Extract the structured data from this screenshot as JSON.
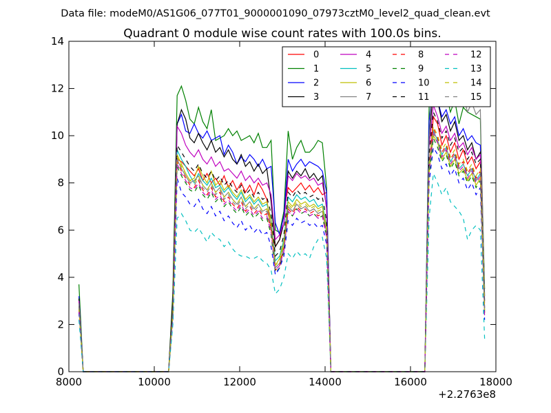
{
  "chart_data": {
    "type": "line",
    "suptitle": "Data file: modeM0/AS1G06_077T01_9000001090_07973cztM0_level2_quad_clean.evt",
    "title": "Quadrant 0 module wise count rates with 100.0s bins.",
    "xlabel": "",
    "ylabel": "",
    "x_offset_label": "+2.2763e8",
    "xlim": [
      8000,
      18000
    ],
    "ylim": [
      0,
      14
    ],
    "xticks": [
      8000,
      10000,
      12000,
      14000,
      16000,
      18000
    ],
    "xtick_labels": [
      "8000",
      "10000",
      "12000",
      "14000",
      "16000",
      "18000"
    ],
    "yticks": [
      0,
      2,
      4,
      6,
      8,
      10,
      12,
      14
    ],
    "ytick_labels": [
      "0",
      "2",
      "4",
      "6",
      "8",
      "10",
      "12",
      "14"
    ],
    "grid": false,
    "legend_position": "top-right",
    "legend_columns": 4,
    "x": [
      8236,
      8336,
      10336,
      10436,
      10536,
      10636,
      10736,
      10836,
      10936,
      11036,
      11136,
      11236,
      11336,
      11436,
      11536,
      11636,
      11736,
      11836,
      11936,
      12036,
      12136,
      12236,
      12336,
      12436,
      12536,
      12636,
      12736,
      12836,
      12936,
      13036,
      13136,
      13236,
      13336,
      13436,
      13536,
      13636,
      13736,
      13836,
      13936,
      14036,
      14136,
      16336,
      16436,
      16536,
      16636,
      16736,
      16836,
      16936,
      17036,
      17136,
      17236,
      17336,
      17436,
      17536,
      17636,
      17736
    ],
    "series": [
      {
        "name": "0",
        "color": "#ff0000",
        "dash": "solid",
        "values": [
          3.0,
          0,
          0,
          3.0,
          9.0,
          8.9,
          8.7,
          8.5,
          8.3,
          8.6,
          8.1,
          8.4,
          8.0,
          8.2,
          7.9,
          8.3,
          7.8,
          8.1,
          7.7,
          8.0,
          7.6,
          7.9,
          7.5,
          8.0,
          7.7,
          7.3,
          6.0,
          5.3,
          5.6,
          6.8,
          7.8,
          7.6,
          7.8,
          8.0,
          7.7,
          7.9,
          7.6,
          7.8,
          7.5,
          7.6,
          0,
          0,
          8.5,
          10.8,
          10.5,
          9.6,
          10.0,
          9.3,
          9.7,
          9.0,
          9.4,
          8.8,
          9.1,
          8.6,
          8.9,
          2.5
        ]
      },
      {
        "name": "1",
        "color": "#008000",
        "dash": "solid",
        "values": [
          3.7,
          0,
          0,
          3.4,
          11.7,
          12.1,
          11.5,
          10.7,
          10.5,
          11.2,
          10.6,
          10.3,
          11.1,
          9.8,
          9.9,
          10.0,
          10.3,
          10.0,
          10.2,
          9.8,
          9.9,
          10.0,
          9.7,
          10.1,
          9.5,
          9.5,
          9.8,
          6.0,
          5.9,
          6.8,
          10.2,
          9.0,
          9.5,
          9.8,
          9.3,
          9.3,
          9.5,
          9.8,
          9.7,
          7.8,
          0,
          0,
          11.2,
          12.6,
          12.2,
          11.6,
          11.8,
          11.0,
          11.5,
          10.5,
          11.2,
          11.0,
          10.9,
          10.8,
          10.7,
          3.5
        ]
      },
      {
        "name": "2",
        "color": "#0000ff",
        "dash": "solid",
        "values": [
          3.2,
          0,
          0,
          2.8,
          10.5,
          10.9,
          10.2,
          10.1,
          10.5,
          10.1,
          9.9,
          10.2,
          9.8,
          9.9,
          10.0,
          9.2,
          9.6,
          9.3,
          8.8,
          9.1,
          8.9,
          9.2,
          9.0,
          8.7,
          9.0,
          8.6,
          8.7,
          6.3,
          5.8,
          6.6,
          9.0,
          8.5,
          8.8,
          9.0,
          8.7,
          8.9,
          8.8,
          8.7,
          8.5,
          7.6,
          0,
          0,
          10.6,
          12.4,
          11.5,
          10.8,
          11.1,
          10.5,
          10.8,
          10.0,
          10.3,
          9.8,
          10.0,
          9.7,
          9.6,
          3.2
        ]
      },
      {
        "name": "3",
        "color": "#000000",
        "dash": "solid",
        "values": [
          3.1,
          0,
          0,
          3.2,
          10.5,
          11.1,
          10.7,
          9.9,
          9.7,
          10.1,
          9.7,
          9.4,
          9.8,
          9.3,
          9.5,
          9.1,
          9.4,
          9.0,
          8.8,
          9.2,
          8.7,
          8.9,
          8.5,
          8.8,
          8.4,
          8.6,
          7.2,
          5.3,
          5.6,
          6.3,
          8.5,
          8.2,
          8.5,
          8.3,
          8.6,
          8.2,
          8.4,
          8.1,
          8.3,
          6.9,
          0,
          0,
          9.8,
          12.0,
          11.5,
          10.6,
          10.9,
          10.2,
          10.6,
          9.8,
          10.0,
          9.4,
          9.7,
          9.0,
          9.3,
          3.0
        ]
      },
      {
        "name": "4",
        "color": "#bf00bf",
        "dash": "solid",
        "values": [
          3.0,
          0,
          0,
          2.6,
          10.4,
          10.1,
          9.6,
          9.3,
          9.1,
          9.4,
          9.0,
          8.8,
          9.1,
          8.7,
          8.9,
          8.5,
          8.6,
          8.4,
          8.2,
          8.5,
          8.1,
          8.3,
          8.0,
          8.2,
          7.9,
          8.0,
          7.5,
          5.6,
          5.8,
          6.3,
          8.3,
          8.1,
          8.4,
          8.2,
          8.3,
          8.1,
          8.2,
          7.9,
          8.0,
          7.0,
          0,
          0,
          9.5,
          11.3,
          10.8,
          10.1,
          10.4,
          9.8,
          10.1,
          9.5,
          9.7,
          9.2,
          9.5,
          9.0,
          9.2,
          2.9
        ]
      },
      {
        "name": "5",
        "color": "#00bfbf",
        "dash": "solid",
        "values": [
          2.8,
          0,
          0,
          2.5,
          9.4,
          9.0,
          8.7,
          8.3,
          8.0,
          8.4,
          8.1,
          7.9,
          8.2,
          7.8,
          7.9,
          7.6,
          7.8,
          7.5,
          7.3,
          7.6,
          7.2,
          7.4,
          7.1,
          7.3,
          7.0,
          7.1,
          6.5,
          4.7,
          4.9,
          5.6,
          7.4,
          7.2,
          7.5,
          7.3,
          7.4,
          7.2,
          7.3,
          7.0,
          7.1,
          6.2,
          0,
          0,
          8.6,
          10.2,
          9.8,
          9.2,
          9.5,
          8.9,
          9.2,
          8.6,
          8.8,
          8.3,
          8.6,
          8.1,
          8.4,
          2.6
        ]
      },
      {
        "name": "6",
        "color": "#bfbf00",
        "dash": "solid",
        "values": [
          2.7,
          0,
          0,
          2.4,
          9.2,
          8.8,
          8.4,
          8.1,
          8.2,
          8.7,
          8.3,
          8.0,
          8.5,
          7.9,
          8.1,
          7.7,
          7.9,
          7.6,
          7.4,
          7.7,
          7.3,
          7.5,
          7.2,
          7.4,
          7.1,
          7.2,
          6.4,
          4.5,
          4.8,
          5.5,
          7.2,
          7.0,
          7.3,
          7.1,
          7.2,
          7.0,
          7.1,
          6.9,
          7.0,
          6.1,
          0,
          0,
          8.4,
          10.0,
          9.7,
          9.0,
          9.3,
          8.7,
          9.0,
          8.4,
          8.6,
          8.1,
          8.4,
          7.9,
          8.2,
          2.5
        ]
      },
      {
        "name": "7",
        "color": "#808080",
        "dash": "solid",
        "values": [
          2.9,
          0,
          0,
          2.7,
          9.0,
          8.6,
          8.3,
          8.0,
          8.1,
          8.3,
          7.9,
          7.7,
          8.0,
          7.6,
          7.8,
          7.4,
          7.6,
          7.3,
          7.1,
          7.4,
          7.0,
          7.2,
          6.9,
          7.1,
          6.8,
          6.9,
          6.2,
          4.4,
          4.6,
          5.3,
          7.0,
          6.8,
          7.1,
          6.9,
          7.0,
          6.8,
          6.9,
          6.7,
          6.8,
          5.9,
          0,
          0,
          9.8,
          13.3,
          12.2,
          11.8,
          12.5,
          12.0,
          12.4,
          11.8,
          11.7,
          11.0,
          11.4,
          10.9,
          11.1,
          3.2
        ]
      },
      {
        "name": "8",
        "color": "#ff0000",
        "dash": "dashed",
        "values": [
          2.6,
          0,
          0,
          2.3,
          8.9,
          8.5,
          8.2,
          7.9,
          7.8,
          8.1,
          7.7,
          7.5,
          7.8,
          7.4,
          7.6,
          7.2,
          7.4,
          7.1,
          6.9,
          7.2,
          6.8,
          7.0,
          6.7,
          6.9,
          6.6,
          6.7,
          6.0,
          4.3,
          4.5,
          5.2,
          6.9,
          6.7,
          7.0,
          6.8,
          6.9,
          6.7,
          6.8,
          6.6,
          6.7,
          5.8,
          0,
          0,
          8.7,
          10.3,
          9.9,
          9.3,
          9.6,
          9.0,
          9.3,
          8.7,
          8.9,
          8.4,
          8.7,
          8.2,
          8.5,
          2.4
        ]
      },
      {
        "name": "9",
        "color": "#008000",
        "dash": "dashed",
        "values": [
          2.7,
          0,
          0,
          2.4,
          8.7,
          8.3,
          8.0,
          7.7,
          7.6,
          7.9,
          7.5,
          7.3,
          7.6,
          7.2,
          7.4,
          7.0,
          7.2,
          6.9,
          6.7,
          7.0,
          6.6,
          6.8,
          6.5,
          6.7,
          6.4,
          6.5,
          5.8,
          4.2,
          4.4,
          5.1,
          6.8,
          6.6,
          6.9,
          6.7,
          6.8,
          6.6,
          6.7,
          6.5,
          6.6,
          5.7,
          0,
          0,
          8.3,
          9.9,
          9.5,
          8.9,
          9.2,
          8.6,
          8.9,
          8.3,
          8.5,
          8.0,
          8.3,
          7.8,
          8.1,
          2.3
        ]
      },
      {
        "name": "10",
        "color": "#0000ff",
        "dash": "dashed",
        "values": [
          2.5,
          0,
          0,
          2.2,
          8.2,
          7.6,
          7.4,
          7.1,
          7.0,
          7.3,
          6.9,
          6.7,
          7.0,
          6.6,
          6.8,
          6.4,
          6.6,
          6.3,
          6.1,
          6.4,
          6.0,
          6.2,
          5.9,
          6.1,
          5.8,
          5.9,
          5.3,
          4.1,
          4.4,
          4.9,
          6.4,
          6.2,
          6.5,
          6.3,
          6.4,
          6.2,
          6.3,
          6.1,
          6.2,
          5.4,
          0,
          0,
          8.0,
          9.5,
          9.2,
          8.6,
          8.8,
          8.3,
          8.6,
          8.0,
          8.2,
          7.7,
          8.0,
          7.5,
          7.8,
          2.2
        ]
      },
      {
        "name": "11",
        "color": "#000000",
        "dash": "dashed",
        "values": [
          2.8,
          0,
          0,
          2.6,
          9.6,
          9.3,
          9.0,
          8.7,
          8.5,
          8.8,
          8.4,
          8.2,
          8.5,
          8.1,
          8.3,
          7.9,
          8.1,
          7.8,
          7.6,
          7.9,
          7.5,
          7.7,
          7.4,
          7.6,
          7.3,
          7.4,
          6.7,
          4.9,
          5.1,
          5.8,
          7.6,
          7.4,
          7.7,
          7.5,
          7.6,
          7.4,
          7.5,
          7.3,
          7.4,
          6.4,
          0,
          0,
          9.2,
          11.0,
          10.6,
          9.9,
          10.2,
          9.6,
          9.9,
          9.3,
          9.5,
          9.0,
          9.3,
          8.8,
          9.0,
          2.7
        ]
      },
      {
        "name": "12",
        "color": "#bf00bf",
        "dash": "dashed",
        "values": [
          2.6,
          0,
          0,
          2.3,
          8.8,
          8.4,
          8.1,
          7.8,
          7.7,
          8.0,
          7.6,
          7.4,
          7.7,
          7.3,
          7.5,
          7.1,
          7.3,
          7.0,
          6.8,
          7.1,
          6.7,
          6.9,
          6.6,
          6.8,
          6.5,
          6.6,
          5.9,
          4.3,
          4.5,
          5.1,
          6.8,
          6.6,
          6.9,
          6.7,
          6.8,
          6.6,
          6.7,
          6.5,
          6.6,
          5.7,
          0,
          0,
          8.5,
          10.1,
          9.7,
          9.1,
          9.4,
          8.8,
          9.1,
          8.5,
          8.7,
          8.2,
          8.5,
          8.0,
          8.3,
          2.3
        ]
      },
      {
        "name": "13",
        "color": "#00bfbf",
        "dash": "dashed",
        "values": [
          2.2,
          0,
          0,
          2.0,
          6.5,
          6.7,
          6.4,
          6.0,
          5.9,
          6.1,
          5.8,
          5.5,
          5.9,
          5.7,
          5.6,
          5.3,
          5.5,
          5.2,
          5.0,
          4.9,
          4.9,
          4.8,
          4.8,
          4.9,
          4.7,
          4.6,
          4.3,
          3.3,
          3.5,
          4.0,
          5.0,
          4.8,
          5.1,
          4.9,
          5.0,
          4.8,
          5.3,
          5.6,
          5.7,
          4.8,
          0,
          0,
          6.5,
          8.4,
          8.0,
          7.5,
          7.8,
          7.2,
          7.0,
          6.8,
          6.5,
          5.6,
          6.0,
          6.2,
          6.0,
          1.4
        ]
      },
      {
        "name": "14",
        "color": "#bfbf00",
        "dash": "dashed",
        "values": [
          2.7,
          0,
          0,
          2.5,
          9.1,
          8.7,
          8.4,
          8.1,
          8.0,
          8.3,
          7.9,
          7.7,
          8.0,
          7.6,
          7.8,
          7.4,
          7.6,
          7.3,
          7.1,
          7.4,
          7.0,
          7.2,
          6.9,
          7.1,
          6.8,
          6.9,
          6.2,
          4.5,
          4.7,
          5.4,
          7.1,
          6.9,
          7.2,
          7.0,
          7.1,
          6.9,
          7.0,
          6.8,
          6.9,
          6.0,
          0,
          0,
          8.8,
          10.4,
          10.0,
          9.4,
          9.7,
          9.1,
          9.4,
          8.8,
          9.0,
          8.5,
          8.8,
          8.3,
          8.6,
          2.6
        ]
      },
      {
        "name": "15",
        "color": "#808080",
        "dash": "dashed",
        "values": [
          2.8,
          0,
          0,
          2.5,
          9.0,
          8.6,
          8.3,
          8.0,
          7.9,
          8.2,
          7.8,
          7.6,
          7.9,
          7.5,
          7.7,
          7.3,
          7.5,
          7.2,
          7.0,
          7.3,
          6.9,
          7.1,
          6.8,
          7.0,
          6.7,
          6.8,
          6.1,
          4.4,
          4.6,
          5.3,
          7.0,
          6.8,
          7.1,
          6.9,
          7.0,
          6.8,
          6.9,
          6.7,
          6.8,
          5.9,
          0,
          0,
          8.6,
          10.2,
          9.8,
          9.2,
          9.5,
          8.9,
          9.2,
          8.6,
          8.8,
          8.3,
          8.6,
          8.1,
          8.4,
          2.5
        ]
      }
    ]
  }
}
